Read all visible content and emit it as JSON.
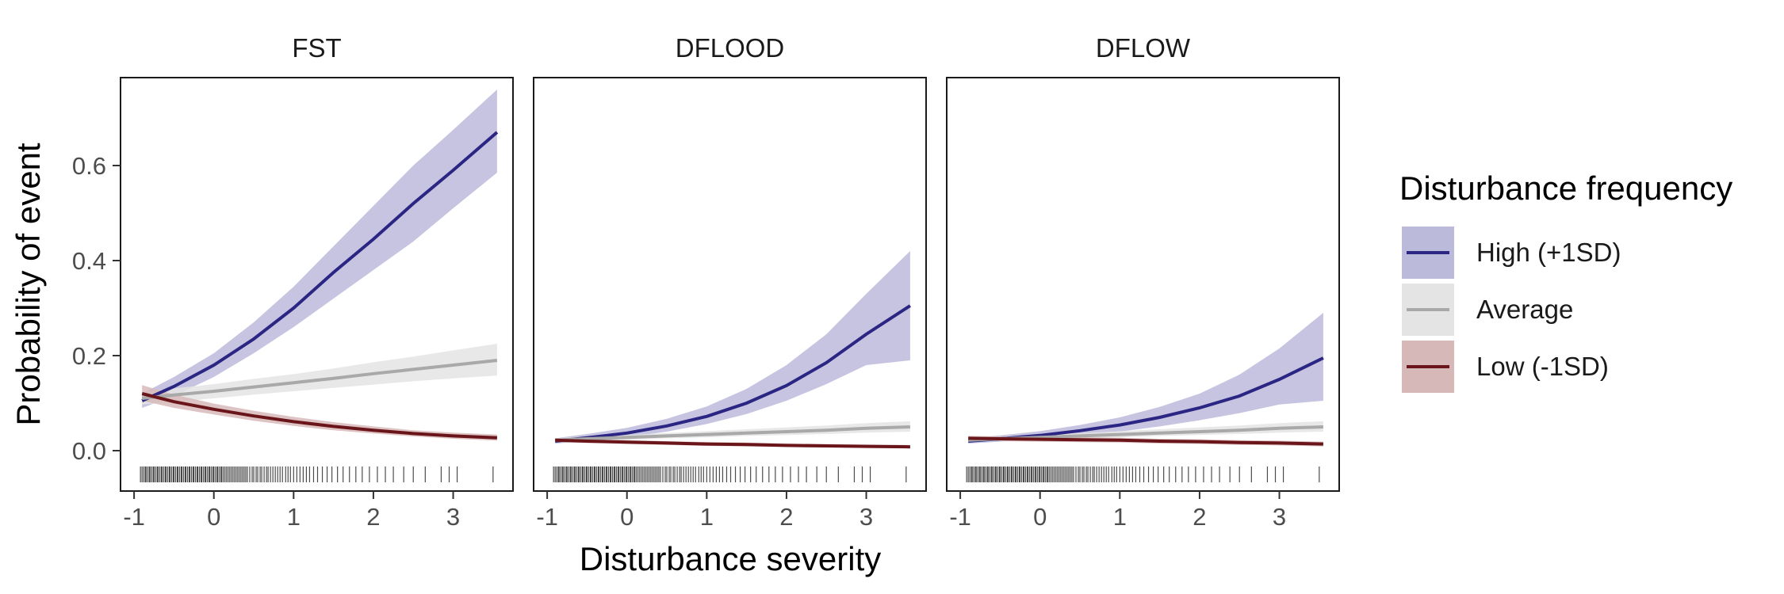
{
  "chart_data": {
    "type": "line",
    "ylabel": "Probability of event",
    "xlabel": "Disturbance severity",
    "xlim": [
      -1.17,
      3.75
    ],
    "ylim": [
      -0.085,
      0.785
    ],
    "x_ticks": [
      -1,
      0,
      1,
      2,
      3
    ],
    "y_ticks": [
      0.0,
      0.2,
      0.4,
      0.6
    ],
    "y_tick_labels": [
      "0.0",
      "0.2",
      "0.4",
      "0.6"
    ],
    "grid": false,
    "legend": {
      "title": "Disturbance frequency",
      "position": "right",
      "entries": [
        {
          "label": "High (+1SD)",
          "color": "#2b2583",
          "fill": "#bcbadb"
        },
        {
          "label": "Average",
          "color": "#a9a9a9",
          "fill": "#e4e4e4"
        },
        {
          "label": "Low (-1SD)",
          "color": "#6a1519",
          "fill": "#d7b8b8"
        }
      ]
    },
    "x_grid": [
      -0.9,
      -0.5,
      0,
      0.5,
      1,
      1.5,
      2,
      2.5,
      3,
      3.55
    ],
    "panels": [
      {
        "title": "FST",
        "series": [
          {
            "name": "High (+1SD)",
            "y": [
              0.105,
              0.135,
              0.18,
              0.235,
              0.3,
              0.375,
              0.445,
              0.52,
              0.59,
              0.67
            ],
            "lo": [
              0.09,
              0.115,
              0.155,
              0.205,
              0.26,
              0.32,
              0.38,
              0.44,
              0.51,
              0.585
            ],
            "hi": [
              0.12,
              0.155,
              0.205,
              0.27,
              0.345,
              0.43,
              0.515,
              0.6,
              0.675,
              0.76
            ]
          },
          {
            "name": "Average",
            "y": [
              0.11,
              0.117,
              0.125,
              0.134,
              0.143,
              0.152,
              0.162,
              0.171,
              0.18,
              0.19
            ],
            "lo": [
              0.097,
              0.103,
              0.11,
              0.118,
              0.125,
              0.132,
              0.139,
              0.146,
              0.152,
              0.158
            ],
            "hi": [
              0.123,
              0.131,
              0.14,
              0.151,
              0.161,
              0.173,
              0.186,
              0.198,
              0.211,
              0.225
            ]
          },
          {
            "name": "Low (-1SD)",
            "y": [
              0.12,
              0.103,
              0.087,
              0.073,
              0.061,
              0.051,
              0.043,
              0.036,
              0.031,
              0.027
            ],
            "lo": [
              0.105,
              0.09,
              0.076,
              0.063,
              0.052,
              0.043,
              0.036,
              0.03,
              0.025,
              0.021
            ],
            "hi": [
              0.138,
              0.118,
              0.099,
              0.084,
              0.071,
              0.06,
              0.051,
              0.043,
              0.038,
              0.034
            ]
          }
        ]
      },
      {
        "title": "DFLOOD",
        "series": [
          {
            "name": "High (+1SD)",
            "y": [
              0.02,
              0.027,
              0.037,
              0.052,
              0.072,
              0.1,
              0.137,
              0.185,
              0.245,
              0.305
            ],
            "lo": [
              0.015,
              0.02,
              0.028,
              0.04,
              0.056,
              0.077,
              0.105,
              0.14,
              0.18,
              0.19
            ],
            "hi": [
              0.026,
              0.035,
              0.048,
              0.067,
              0.093,
              0.13,
              0.18,
              0.245,
              0.33,
              0.42
            ]
          },
          {
            "name": "Average",
            "y": [
              0.022,
              0.025,
              0.028,
              0.031,
              0.034,
              0.037,
              0.04,
              0.043,
              0.047,
              0.05
            ],
            "lo": [
              0.018,
              0.021,
              0.023,
              0.026,
              0.028,
              0.031,
              0.033,
              0.035,
              0.038,
              0.04
            ],
            "hi": [
              0.026,
              0.03,
              0.033,
              0.037,
              0.041,
              0.045,
              0.049,
              0.053,
              0.058,
              0.062
            ]
          },
          {
            "name": "Low (-1SD)",
            "y": [
              0.022,
              0.02,
              0.018,
              0.016,
              0.014,
              0.013,
              0.011,
              0.01,
              0.009,
              0.008
            ],
            "lo": [
              0.018,
              0.016,
              0.014,
              0.012,
              0.01,
              0.009,
              0.008,
              0.007,
              0.006,
              0.005
            ],
            "hi": [
              0.026,
              0.024,
              0.022,
              0.02,
              0.018,
              0.017,
              0.015,
              0.014,
              0.013,
              0.012
            ]
          }
        ]
      },
      {
        "title": "DFLOW",
        "series": [
          {
            "name": "High (+1SD)",
            "y": [
              0.02,
              0.025,
              0.032,
              0.042,
              0.054,
              0.07,
              0.09,
              0.115,
              0.15,
              0.195
            ],
            "lo": [
              0.015,
              0.019,
              0.024,
              0.031,
              0.04,
              0.051,
              0.064,
              0.079,
              0.097,
              0.105
            ],
            "hi": [
              0.026,
              0.032,
              0.041,
              0.054,
              0.07,
              0.092,
              0.12,
              0.16,
              0.215,
              0.29
            ]
          },
          {
            "name": "Average",
            "y": [
              0.022,
              0.025,
              0.028,
              0.031,
              0.034,
              0.037,
              0.04,
              0.043,
              0.047,
              0.05
            ],
            "lo": [
              0.018,
              0.021,
              0.023,
              0.026,
              0.028,
              0.031,
              0.033,
              0.035,
              0.038,
              0.04
            ],
            "hi": [
              0.026,
              0.03,
              0.033,
              0.037,
              0.041,
              0.045,
              0.049,
              0.053,
              0.058,
              0.062
            ]
          },
          {
            "name": "Low (-1SD)",
            "y": [
              0.026,
              0.025,
              0.024,
              0.023,
              0.022,
              0.02,
              0.019,
              0.017,
              0.016,
              0.014
            ],
            "lo": [
              0.021,
              0.02,
              0.019,
              0.018,
              0.017,
              0.015,
              0.014,
              0.012,
              0.011,
              0.009
            ],
            "hi": [
              0.031,
              0.03,
              0.029,
              0.028,
              0.027,
              0.025,
              0.024,
              0.022,
              0.021,
              0.019
            ]
          }
        ]
      }
    ],
    "rug": {
      "y": -0.05,
      "x": [
        -0.92,
        -0.9,
        -0.88,
        -0.86,
        -0.85,
        -0.83,
        -0.81,
        -0.8,
        -0.78,
        -0.76,
        -0.75,
        -0.73,
        -0.71,
        -0.7,
        -0.68,
        -0.66,
        -0.65,
        -0.63,
        -0.61,
        -0.6,
        -0.58,
        -0.56,
        -0.55,
        -0.53,
        -0.51,
        -0.5,
        -0.48,
        -0.46,
        -0.45,
        -0.43,
        -0.41,
        -0.4,
        -0.38,
        -0.36,
        -0.35,
        -0.33,
        -0.31,
        -0.3,
        -0.28,
        -0.26,
        -0.25,
        -0.23,
        -0.21,
        -0.2,
        -0.18,
        -0.16,
        -0.15,
        -0.13,
        -0.11,
        -0.1,
        -0.08,
        -0.06,
        -0.05,
        -0.03,
        -0.01,
        0.0,
        0.02,
        0.04,
        0.05,
        0.07,
        0.09,
        0.1,
        0.12,
        0.14,
        0.16,
        0.18,
        0.2,
        0.22,
        0.24,
        0.26,
        0.28,
        0.3,
        0.32,
        0.34,
        0.36,
        0.38,
        0.4,
        0.42,
        0.45,
        0.48,
        0.5,
        0.53,
        0.55,
        0.58,
        0.6,
        0.63,
        0.66,
        0.68,
        0.71,
        0.74,
        0.77,
        0.8,
        0.83,
        0.86,
        0.9,
        0.93,
        0.96,
        1.0,
        1.04,
        1.08,
        1.12,
        1.16,
        1.2,
        1.25,
        1.3,
        1.36,
        1.42,
        1.48,
        1.55,
        1.62,
        1.7,
        1.78,
        1.86,
        1.95,
        2.05,
        2.15,
        2.25,
        2.38,
        2.5,
        2.65,
        2.85,
        2.95,
        3.05,
        3.5
      ]
    }
  }
}
